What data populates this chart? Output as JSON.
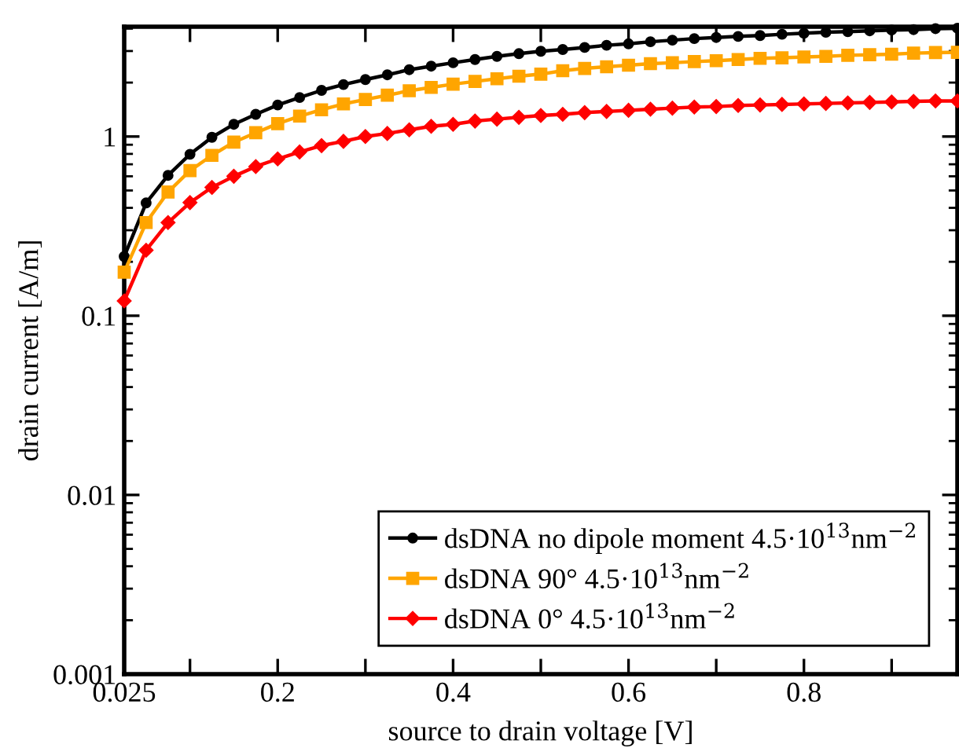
{
  "chart_data": {
    "type": "line",
    "xlabel": "source to drain voltage [V]",
    "ylabel": "drain current [A/m]",
    "x": [
      0.025,
      0.05,
      0.075,
      0.1,
      0.125,
      0.15,
      0.175,
      0.2,
      0.225,
      0.25,
      0.275,
      0.3,
      0.325,
      0.35,
      0.375,
      0.4,
      0.425,
      0.45,
      0.475,
      0.5,
      0.525,
      0.55,
      0.575,
      0.6,
      0.625,
      0.65,
      0.675,
      0.7,
      0.725,
      0.75,
      0.775,
      0.8,
      0.825,
      0.85,
      0.875,
      0.9,
      0.925,
      0.95,
      0.975
    ],
    "series": [
      {
        "name": "dsDNA no dipole moment 4.5·10$^{13}$nm$^{−2}$",
        "color": "#000000",
        "marker": "circle",
        "values": [
          0.214,
          0.426,
          0.607,
          0.796,
          0.99,
          1.17,
          1.33,
          1.5,
          1.65,
          1.81,
          1.95,
          2.08,
          2.21,
          2.36,
          2.47,
          2.58,
          2.69,
          2.8,
          2.9,
          2.99,
          3.06,
          3.14,
          3.23,
          3.29,
          3.38,
          3.45,
          3.52,
          3.57,
          3.62,
          3.66,
          3.72,
          3.77,
          3.82,
          3.85,
          3.89,
          3.93,
          3.95,
          4.0,
          4.02
        ]
      },
      {
        "name": "dsDNA 90° 4.5·10$^{13}$nm$^{−2}$",
        "color": "#ffa500",
        "marker": "square",
        "values": [
          0.175,
          0.331,
          0.49,
          0.645,
          0.785,
          0.93,
          1.05,
          1.18,
          1.3,
          1.41,
          1.52,
          1.61,
          1.7,
          1.8,
          1.88,
          1.96,
          2.03,
          2.1,
          2.17,
          2.23,
          2.33,
          2.4,
          2.45,
          2.5,
          2.55,
          2.58,
          2.62,
          2.65,
          2.69,
          2.73,
          2.75,
          2.78,
          2.8,
          2.84,
          2.86,
          2.88,
          2.92,
          2.94,
          2.95
        ]
      },
      {
        "name": "dsDNA 0° 4.5·10$^{13}$nm$^{−2}$",
        "color": "#ff0000",
        "marker": "diamond",
        "values": [
          0.121,
          0.232,
          0.331,
          0.428,
          0.52,
          0.6,
          0.68,
          0.75,
          0.82,
          0.89,
          0.94,
          1.0,
          1.04,
          1.09,
          1.14,
          1.17,
          1.22,
          1.25,
          1.28,
          1.31,
          1.33,
          1.36,
          1.38,
          1.4,
          1.42,
          1.44,
          1.46,
          1.47,
          1.49,
          1.5,
          1.51,
          1.52,
          1.53,
          1.54,
          1.55,
          1.56,
          1.57,
          1.58,
          1.58
        ]
      }
    ],
    "log": "y",
    "xlim": [
      0.025,
      0.975
    ],
    "ylim": [
      0.001,
      4.1
    ],
    "xticks": [
      0.025,
      {
        "value": 0.1,
        "label": null
      },
      0.2,
      {
        "value": 0.3,
        "label": null
      },
      0.4,
      {
        "value": 0.5,
        "label": null
      },
      0.6,
      {
        "value": 0.7,
        "label": null
      },
      0.8,
      {
        "value": 0.9,
        "label": null
      }
    ],
    "yticks": [
      0.001,
      0.01,
      0.1,
      1
    ],
    "grid": false,
    "legend": "bottom right",
    "line_style": "solid"
  }
}
